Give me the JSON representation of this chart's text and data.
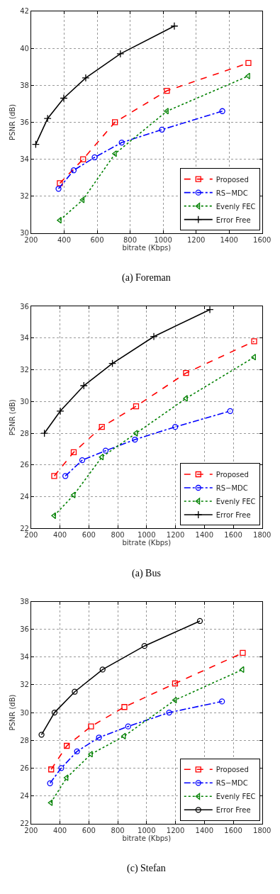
{
  "chart_data": [
    {
      "type": "line",
      "title": "(a) Foreman",
      "xlabel": "bitrate (Kbps)",
      "ylabel": "PSNR (dB)",
      "xlim": [
        200,
        1600
      ],
      "xticks": [
        200,
        400,
        600,
        800,
        1000,
        1200,
        1400,
        1600
      ],
      "ylim": [
        30,
        42
      ],
      "yticks": [
        30,
        32,
        34,
        36,
        38,
        40,
        42
      ],
      "grid": true,
      "legend": "bottom right",
      "series": [
        {
          "name": "Proposed",
          "color": "#ff0000",
          "marker": "square",
          "line_style": "dashed",
          "x": [
            374,
            515,
            708,
            1023,
            1517
          ],
          "values": [
            32.7,
            34.0,
            36.0,
            37.7,
            39.2
          ]
        },
        {
          "name": "RS−MDC",
          "color": "#0000ff",
          "marker": "circle",
          "line_style": "dashdot",
          "x": [
            366,
            458,
            585,
            749,
            993,
            1359
          ],
          "values": [
            32.4,
            33.4,
            34.1,
            34.9,
            35.6,
            36.6
          ]
        },
        {
          "name": "Evenly FEC",
          "color": "#008000",
          "marker": "triangle",
          "line_style": "dotted",
          "x": [
            374,
            513,
            709,
            1023,
            1517
          ],
          "values": [
            30.7,
            31.8,
            34.3,
            36.6,
            38.5
          ]
        },
        {
          "name": "Error Free",
          "color": "#000000",
          "marker": "cross",
          "line_style": "solid",
          "x": [
            228,
            300,
            398,
            531,
            741,
            1068
          ],
          "values": [
            34.8,
            36.2,
            37.3,
            38.4,
            39.7,
            41.2
          ]
        }
      ]
    },
    {
      "type": "line",
      "title": "(a) Bus",
      "xlabel": "bitrate (Kbps)",
      "ylabel": "PSNR (dB)",
      "xlim": [
        200,
        1800
      ],
      "xticks": [
        200,
        400,
        600,
        800,
        1000,
        1200,
        1400,
        1600,
        1800
      ],
      "ylim": [
        22,
        36
      ],
      "yticks": [
        22,
        24,
        26,
        28,
        30,
        32,
        34,
        36
      ],
      "grid": true,
      "legend": "bottom right",
      "series": [
        {
          "name": "Proposed",
          "color": "#ff0000",
          "marker": "square",
          "line_style": "dashed",
          "x": [
            360,
            495,
            690,
            927,
            1273,
            1745
          ],
          "values": [
            25.3,
            26.8,
            28.4,
            29.7,
            31.8,
            33.8
          ]
        },
        {
          "name": "RS−MDC",
          "color": "#0000ff",
          "marker": "circle",
          "line_style": "dashdot",
          "x": [
            437,
            554,
            716,
            919,
            1198,
            1579
          ],
          "values": [
            25.3,
            26.3,
            26.9,
            27.6,
            28.4,
            29.4
          ]
        },
        {
          "name": "Evenly FEC",
          "color": "#008000",
          "marker": "triangle",
          "line_style": "dotted",
          "x": [
            360,
            495,
            690,
            927,
            1273,
            1745
          ],
          "values": [
            22.8,
            24.1,
            26.5,
            28.0,
            30.2,
            32.8
          ]
        },
        {
          "name": "Error Free",
          "color": "#000000",
          "marker": "cross",
          "line_style": "solid",
          "x": [
            292,
            402,
            565,
            763,
            1050,
            1438
          ],
          "values": [
            28.0,
            29.4,
            31.0,
            32.4,
            34.1,
            35.8
          ]
        }
      ]
    },
    {
      "type": "line",
      "title": "(c) Stefan",
      "xlabel": "bitrate (Kbps)",
      "ylabel": "PSNR (dB)",
      "xlim": [
        200,
        1800
      ],
      "xticks": [
        200,
        400,
        600,
        800,
        1000,
        1200,
        1400,
        1600,
        1800
      ],
      "ylim": [
        22,
        38
      ],
      "yticks": [
        22,
        24,
        26,
        28,
        30,
        32,
        34,
        36,
        38
      ],
      "grid": true,
      "legend": "bottom right",
      "series": [
        {
          "name": "Proposed",
          "color": "#ff0000",
          "marker": "square",
          "line_style": "dashed",
          "x": [
            339,
            447,
            615,
            846,
            1197,
            1666
          ],
          "values": [
            25.9,
            27.6,
            29.0,
            30.4,
            32.1,
            34.3
          ]
        },
        {
          "name": "RS−MDC",
          "color": "#0000ff",
          "marker": "circle",
          "line_style": "dashdot",
          "x": [
            331,
            409,
            518,
            670,
            872,
            1156,
            1522
          ],
          "values": [
            24.9,
            26.0,
            27.2,
            28.2,
            29.0,
            30.0,
            30.8
          ]
        },
        {
          "name": "Evenly FEC",
          "color": "#008000",
          "marker": "triangle",
          "line_style": "dotted",
          "x": [
            337,
            446,
            615,
            844,
            1197,
            1664
          ],
          "values": [
            23.5,
            25.3,
            27.0,
            28.3,
            30.9,
            33.1
          ]
        },
        {
          "name": "Error Free",
          "color": "#000000",
          "marker": "circle",
          "line_style": "solid",
          "x": [
            272,
            362,
            502,
            695,
            985,
            1369
          ],
          "values": [
            28.4,
            30.0,
            31.5,
            33.1,
            34.8,
            36.6
          ]
        }
      ]
    }
  ]
}
